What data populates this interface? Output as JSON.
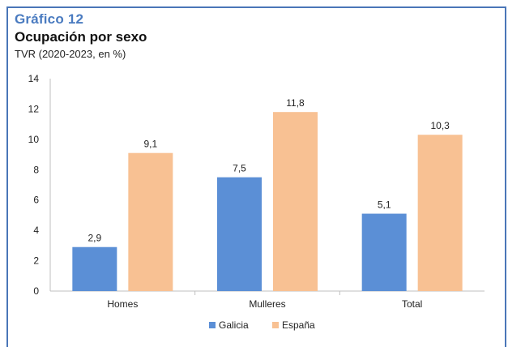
{
  "figure_label": "Gráfico 12",
  "chart_data": {
    "type": "bar",
    "title": "Ocupación por sexo",
    "subtitle": "TVR (2020-2023, en %)",
    "xlabel": "",
    "ylabel": "",
    "categories": [
      "Homes",
      "Mulleres",
      "Total"
    ],
    "series": [
      {
        "name": "Galicia",
        "values": [
          2.9,
          7.5,
          5.1
        ],
        "labels": [
          "2,9",
          "7,5",
          "5,1"
        ],
        "color": "#5b8fd6"
      },
      {
        "name": "España",
        "values": [
          9.1,
          11.8,
          10.3
        ],
        "labels": [
          "9,1",
          "11,8",
          "10,3"
        ],
        "color": "#f8c193"
      }
    ],
    "ylim": [
      0,
      14
    ],
    "yticks": [
      "0",
      "2",
      "4",
      "6",
      "8",
      "10",
      "12",
      "14"
    ],
    "legend": "bottom",
    "grid": false
  }
}
